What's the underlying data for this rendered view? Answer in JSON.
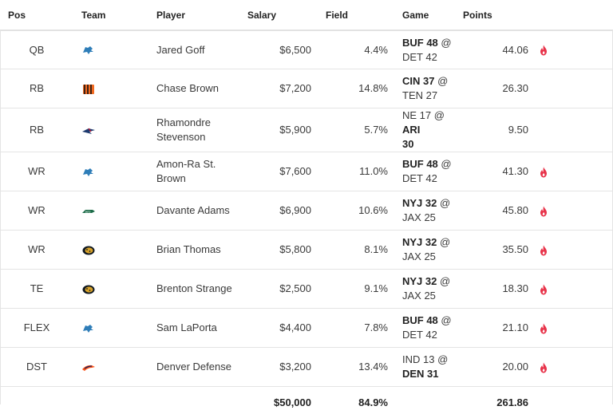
{
  "headers": {
    "pos": "Pos",
    "team": "Team",
    "player": "Player",
    "salary": "Salary",
    "field": "Field",
    "game": "Game",
    "points": "Points"
  },
  "colors": {
    "flame": "#e8334a",
    "header_text": "#222222",
    "border": "#e4e4e4"
  },
  "rows": [
    {
      "pos": "QB",
      "team_logo": "lions-logo-icon",
      "player": "Jared Goff",
      "salary": "$6,500",
      "field": "4.4%",
      "game_left": "BUF 48",
      "game_at": " @",
      "game_right": "DET 42",
      "left_bold": true,
      "right_bold": false,
      "points": "44.06",
      "hot": true
    },
    {
      "pos": "RB",
      "team_logo": "bengals-logo-icon",
      "player": "Chase Brown",
      "salary": "$7,200",
      "field": "14.8%",
      "game_left": "CIN 37",
      "game_at": " @",
      "game_right": "TEN 27",
      "left_bold": true,
      "right_bold": false,
      "points": "26.30",
      "hot": false
    },
    {
      "pos": "RB",
      "team_logo": "patriots-logo-icon",
      "player": "Rhamondre Stevenson",
      "salary": "$5,900",
      "field": "5.7%",
      "game_left": "NE 17",
      "game_at": " @ ",
      "game_right": "ARI 30",
      "left_bold": false,
      "right_bold": true,
      "points": "9.50",
      "hot": false
    },
    {
      "pos": "WR",
      "team_logo": "lions-logo-icon",
      "player": "Amon-Ra St. Brown",
      "salary": "$7,600",
      "field": "11.0%",
      "game_left": "BUF 48",
      "game_at": " @",
      "game_right": "DET 42",
      "left_bold": true,
      "right_bold": false,
      "points": "41.30",
      "hot": true
    },
    {
      "pos": "WR",
      "team_logo": "jets-logo-icon",
      "player": "Davante Adams",
      "salary": "$6,900",
      "field": "10.6%",
      "game_left": "NYJ 32",
      "game_at": " @",
      "game_right": "JAX 25",
      "left_bold": true,
      "right_bold": false,
      "points": "45.80",
      "hot": true
    },
    {
      "pos": "WR",
      "team_logo": "jaguars-logo-icon",
      "player": "Brian Thomas",
      "salary": "$5,800",
      "field": "8.1%",
      "game_left": "NYJ 32",
      "game_at": " @",
      "game_right": "JAX 25",
      "left_bold": true,
      "right_bold": false,
      "points": "35.50",
      "hot": true
    },
    {
      "pos": "TE",
      "team_logo": "jaguars-logo-icon",
      "player": "Brenton Strange",
      "salary": "$2,500",
      "field": "9.1%",
      "game_left": "NYJ 32",
      "game_at": " @",
      "game_right": "JAX 25",
      "left_bold": true,
      "right_bold": false,
      "points": "18.30",
      "hot": true
    },
    {
      "pos": "FLEX",
      "team_logo": "lions-logo-icon",
      "player": "Sam LaPorta",
      "salary": "$4,400",
      "field": "7.8%",
      "game_left": "BUF 48",
      "game_at": " @",
      "game_right": "DET 42",
      "left_bold": true,
      "right_bold": false,
      "points": "21.10",
      "hot": true
    },
    {
      "pos": "DST",
      "team_logo": "broncos-logo-icon",
      "player": "Denver Defense",
      "salary": "$3,200",
      "field": "13.4%",
      "game_left": "IND 13",
      "game_at": " @",
      "game_right": "DEN 31",
      "left_bold": false,
      "right_bold": true,
      "points": "20.00",
      "hot": true
    }
  ],
  "totals": {
    "salary": "$50,000",
    "field": "84.9%",
    "points": "261.86"
  }
}
